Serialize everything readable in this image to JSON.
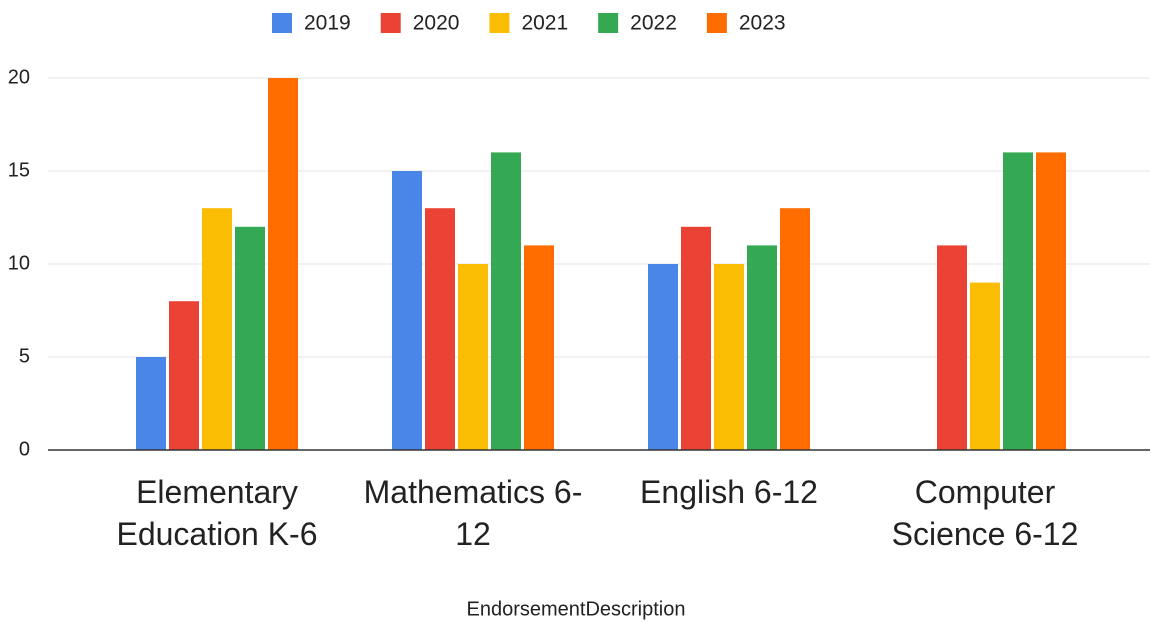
{
  "chart_data": {
    "type": "bar",
    "x_label": "EndorsementDescription",
    "categories": [
      "Elementary Education K-6",
      "Mathematics 6-12",
      "English 6-12",
      "Computer Science 6-12"
    ],
    "series": [
      {
        "name": "2019",
        "color": "#4a86e8",
        "values": [
          5,
          15,
          10,
          null
        ]
      },
      {
        "name": "2020",
        "color": "#ea4335",
        "values": [
          8,
          13,
          12,
          11
        ]
      },
      {
        "name": "2021",
        "color": "#fbbc04",
        "values": [
          13,
          10,
          10,
          9
        ]
      },
      {
        "name": "2022",
        "color": "#34a853",
        "values": [
          12,
          16,
          11,
          16
        ]
      },
      {
        "name": "2023",
        "color": "#ff6d01",
        "values": [
          20,
          11,
          13,
          16
        ]
      }
    ],
    "ylim": [
      0,
      20
    ],
    "yticks": [
      0,
      5,
      10,
      15,
      20
    ],
    "grid": true,
    "legend": "top"
  }
}
